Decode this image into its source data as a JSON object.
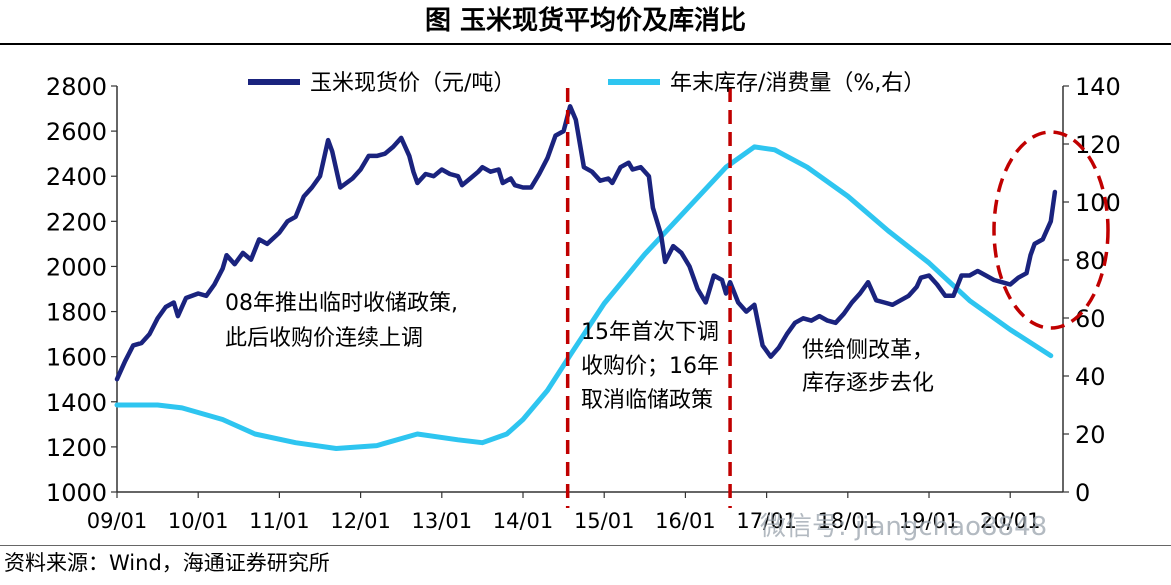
{
  "title": "图  玉米现货平均价及库消比",
  "source": "资料来源：Wind，海通证券研究所",
  "watermark": "微信号: jiangchao8848",
  "chart_data": {
    "type": "line",
    "title": "图  玉米现货平均价及库消比",
    "x_ticks": [
      "09/01",
      "10/01",
      "11/01",
      "12/01",
      "13/01",
      "14/01",
      "15/01",
      "16/01",
      "17/01",
      "18/01",
      "19/01",
      "20/01"
    ],
    "y_left": {
      "min": 1000,
      "max": 2800,
      "ticks": [
        1000,
        1200,
        1400,
        1600,
        1800,
        2000,
        2200,
        2400,
        2600,
        2800
      ]
    },
    "y_right": {
      "min": 0,
      "max": 140,
      "ticks": [
        0,
        20,
        40,
        60,
        80,
        100,
        120,
        140
      ]
    },
    "series": [
      {
        "name": "玉米现货价（元/吨）",
        "axis": "left",
        "color": "#1a237e",
        "points": [
          [
            2009.0,
            1500
          ],
          [
            2009.1,
            1580
          ],
          [
            2009.2,
            1650
          ],
          [
            2009.3,
            1660
          ],
          [
            2009.4,
            1700
          ],
          [
            2009.5,
            1770
          ],
          [
            2009.6,
            1820
          ],
          [
            2009.7,
            1840
          ],
          [
            2009.75,
            1780
          ],
          [
            2009.85,
            1860
          ],
          [
            2010.0,
            1880
          ],
          [
            2010.1,
            1870
          ],
          [
            2010.2,
            1920
          ],
          [
            2010.3,
            1990
          ],
          [
            2010.35,
            2050
          ],
          [
            2010.45,
            2010
          ],
          [
            2010.55,
            2060
          ],
          [
            2010.65,
            2030
          ],
          [
            2010.75,
            2120
          ],
          [
            2010.85,
            2100
          ],
          [
            2011.0,
            2150
          ],
          [
            2011.1,
            2200
          ],
          [
            2011.2,
            2220
          ],
          [
            2011.3,
            2310
          ],
          [
            2011.4,
            2350
          ],
          [
            2011.5,
            2400
          ],
          [
            2011.6,
            2560
          ],
          [
            2011.65,
            2510
          ],
          [
            2011.75,
            2350
          ],
          [
            2011.9,
            2390
          ],
          [
            2012.0,
            2430
          ],
          [
            2012.1,
            2490
          ],
          [
            2012.2,
            2490
          ],
          [
            2012.3,
            2500
          ],
          [
            2012.4,
            2530
          ],
          [
            2012.5,
            2570
          ],
          [
            2012.6,
            2490
          ],
          [
            2012.65,
            2420
          ],
          [
            2012.7,
            2370
          ],
          [
            2012.8,
            2410
          ],
          [
            2012.9,
            2400
          ],
          [
            2013.0,
            2430
          ],
          [
            2013.1,
            2410
          ],
          [
            2013.2,
            2400
          ],
          [
            2013.25,
            2360
          ],
          [
            2013.35,
            2390
          ],
          [
            2013.45,
            2420
          ],
          [
            2013.5,
            2440
          ],
          [
            2013.6,
            2420
          ],
          [
            2013.7,
            2430
          ],
          [
            2013.75,
            2370
          ],
          [
            2013.85,
            2390
          ],
          [
            2013.9,
            2360
          ],
          [
            2014.0,
            2350
          ],
          [
            2014.1,
            2350
          ],
          [
            2014.2,
            2410
          ],
          [
            2014.3,
            2480
          ],
          [
            2014.4,
            2580
          ],
          [
            2014.5,
            2600
          ],
          [
            2014.58,
            2710
          ],
          [
            2014.65,
            2650
          ],
          [
            2014.75,
            2440
          ],
          [
            2014.85,
            2420
          ],
          [
            2014.95,
            2380
          ],
          [
            2015.05,
            2390
          ],
          [
            2015.1,
            2370
          ],
          [
            2015.2,
            2440
          ],
          [
            2015.3,
            2460
          ],
          [
            2015.35,
            2430
          ],
          [
            2015.45,
            2440
          ],
          [
            2015.55,
            2400
          ],
          [
            2015.6,
            2260
          ],
          [
            2015.7,
            2140
          ],
          [
            2015.75,
            2020
          ],
          [
            2015.85,
            2090
          ],
          [
            2015.95,
            2060
          ],
          [
            2016.05,
            2000
          ],
          [
            2016.15,
            1900
          ],
          [
            2016.25,
            1840
          ],
          [
            2016.35,
            1960
          ],
          [
            2016.45,
            1940
          ],
          [
            2016.5,
            1880
          ],
          [
            2016.55,
            1930
          ],
          [
            2016.65,
            1840
          ],
          [
            2016.75,
            1800
          ],
          [
            2016.85,
            1830
          ],
          [
            2016.95,
            1650
          ],
          [
            2017.05,
            1600
          ],
          [
            2017.15,
            1640
          ],
          [
            2017.25,
            1700
          ],
          [
            2017.35,
            1750
          ],
          [
            2017.45,
            1770
          ],
          [
            2017.55,
            1760
          ],
          [
            2017.65,
            1780
          ],
          [
            2017.75,
            1760
          ],
          [
            2017.85,
            1750
          ],
          [
            2017.95,
            1790
          ],
          [
            2018.05,
            1840
          ],
          [
            2018.15,
            1880
          ],
          [
            2018.25,
            1930
          ],
          [
            2018.3,
            1890
          ],
          [
            2018.35,
            1850
          ],
          [
            2018.45,
            1840
          ],
          [
            2018.55,
            1830
          ],
          [
            2018.65,
            1850
          ],
          [
            2018.75,
            1870
          ],
          [
            2018.85,
            1910
          ],
          [
            2018.9,
            1950
          ],
          [
            2019.0,
            1960
          ],
          [
            2019.1,
            1920
          ],
          [
            2019.2,
            1870
          ],
          [
            2019.3,
            1870
          ],
          [
            2019.4,
            1960
          ],
          [
            2019.5,
            1960
          ],
          [
            2019.6,
            1980
          ],
          [
            2019.7,
            1960
          ],
          [
            2019.8,
            1940
          ],
          [
            2019.9,
            1930
          ],
          [
            2020.0,
            1920
          ],
          [
            2020.1,
            1950
          ],
          [
            2020.2,
            1970
          ],
          [
            2020.25,
            2050
          ],
          [
            2020.3,
            2100
          ],
          [
            2020.4,
            2120
          ],
          [
            2020.5,
            2200
          ],
          [
            2020.55,
            2330
          ]
        ]
      },
      {
        "name": "年末库存/消费量（%,右）",
        "axis": "right",
        "color": "#2ec5f0",
        "points": [
          [
            2009.0,
            30
          ],
          [
            2009.5,
            30
          ],
          [
            2009.8,
            29
          ],
          [
            2010.3,
            25
          ],
          [
            2010.7,
            20
          ],
          [
            2011.2,
            17
          ],
          [
            2011.7,
            15
          ],
          [
            2012.2,
            16
          ],
          [
            2012.7,
            20
          ],
          [
            2013.2,
            18
          ],
          [
            2013.5,
            17
          ],
          [
            2013.8,
            20
          ],
          [
            2014.0,
            25
          ],
          [
            2014.3,
            35
          ],
          [
            2014.6,
            48
          ],
          [
            2015.0,
            65
          ],
          [
            2015.5,
            82
          ],
          [
            2016.0,
            97
          ],
          [
            2016.5,
            112
          ],
          [
            2016.85,
            119
          ],
          [
            2017.1,
            118
          ],
          [
            2017.5,
            112
          ],
          [
            2018.0,
            102
          ],
          [
            2018.5,
            90
          ],
          [
            2019.0,
            79
          ],
          [
            2019.5,
            66
          ],
          [
            2020.0,
            56
          ],
          [
            2020.5,
            47
          ]
        ]
      }
    ],
    "annotations": [
      {
        "lines": [
          "08年推出临时收储政策,",
          "此后收购价连续上调"
        ]
      },
      {
        "lines": [
          "15年首次下调",
          "收购价；16年",
          "取消临储政策"
        ]
      },
      {
        "lines": [
          "供给侧改革，",
          "库存逐步去化"
        ]
      }
    ],
    "vlines_x": [
      2014.55,
      2016.55
    ]
  }
}
